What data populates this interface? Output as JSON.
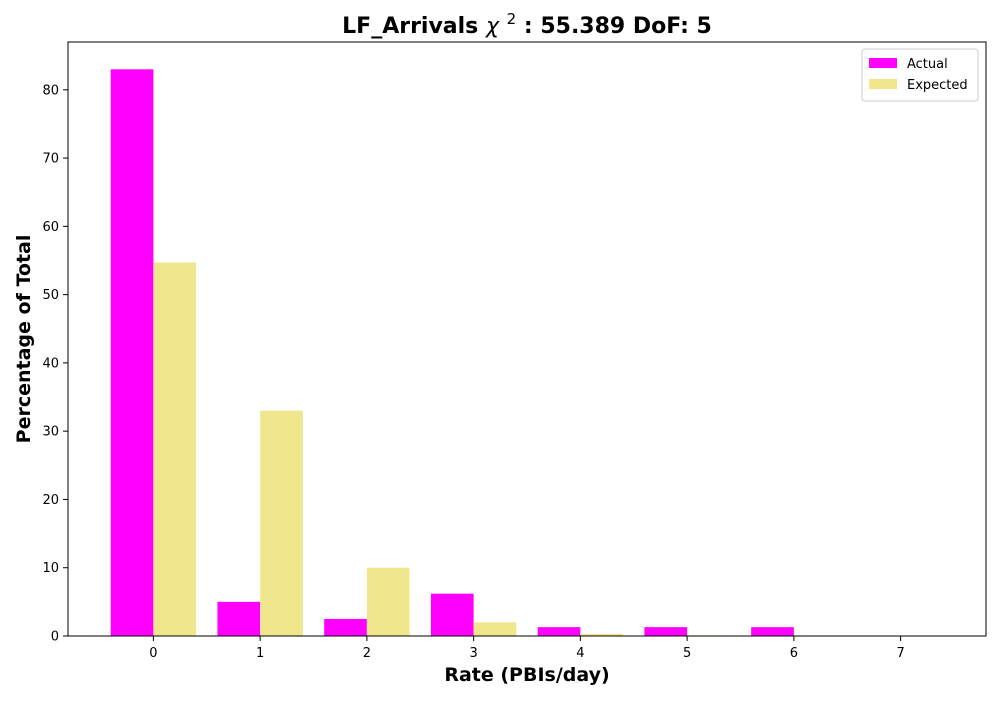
{
  "chart_data": {
    "type": "bar",
    "title": "LF_Arrivals",
    "title_symbol": "χ",
    "title_superscript": "2",
    "title_suffix": ": 55.389 DoF: 5",
    "xlabel": "Rate (PBIs/day)",
    "ylabel": "Percentage of Total",
    "categories": [
      "0",
      "1",
      "2",
      "3",
      "4",
      "5",
      "6",
      "7"
    ],
    "x_values": [
      0,
      1,
      2,
      3,
      4,
      5,
      6,
      7
    ],
    "xlim": [
      -0.8,
      7.8
    ],
    "ylim": [
      0,
      87
    ],
    "yticks": [
      0,
      10,
      20,
      30,
      40,
      50,
      60,
      70,
      80
    ],
    "grid": false,
    "legend_position": "top-right",
    "series": [
      {
        "name": "Actual",
        "color": "#ff00ff",
        "values": [
          83.0,
          5.0,
          2.5,
          6.2,
          1.3,
          1.3,
          1.3,
          0
        ]
      },
      {
        "name": "Expected",
        "color": "#f0e68c",
        "values": [
          54.7,
          33.0,
          10.0,
          2.0,
          0.3,
          0.1,
          0.0,
          0.0
        ]
      }
    ]
  }
}
